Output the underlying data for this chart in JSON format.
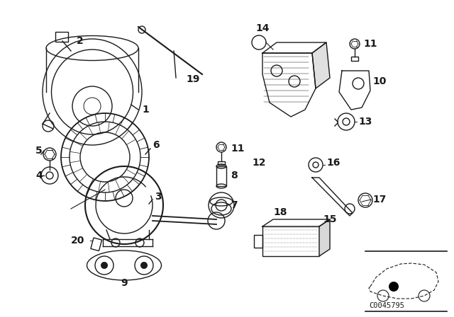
{
  "bg_color": "#ffffff",
  "line_color": "#1a1a1a",
  "line_width": 1.0,
  "label_fontsize": 10,
  "diagram_code": "C0045795",
  "figsize": [
    6.4,
    4.48
  ],
  "dpi": 100
}
